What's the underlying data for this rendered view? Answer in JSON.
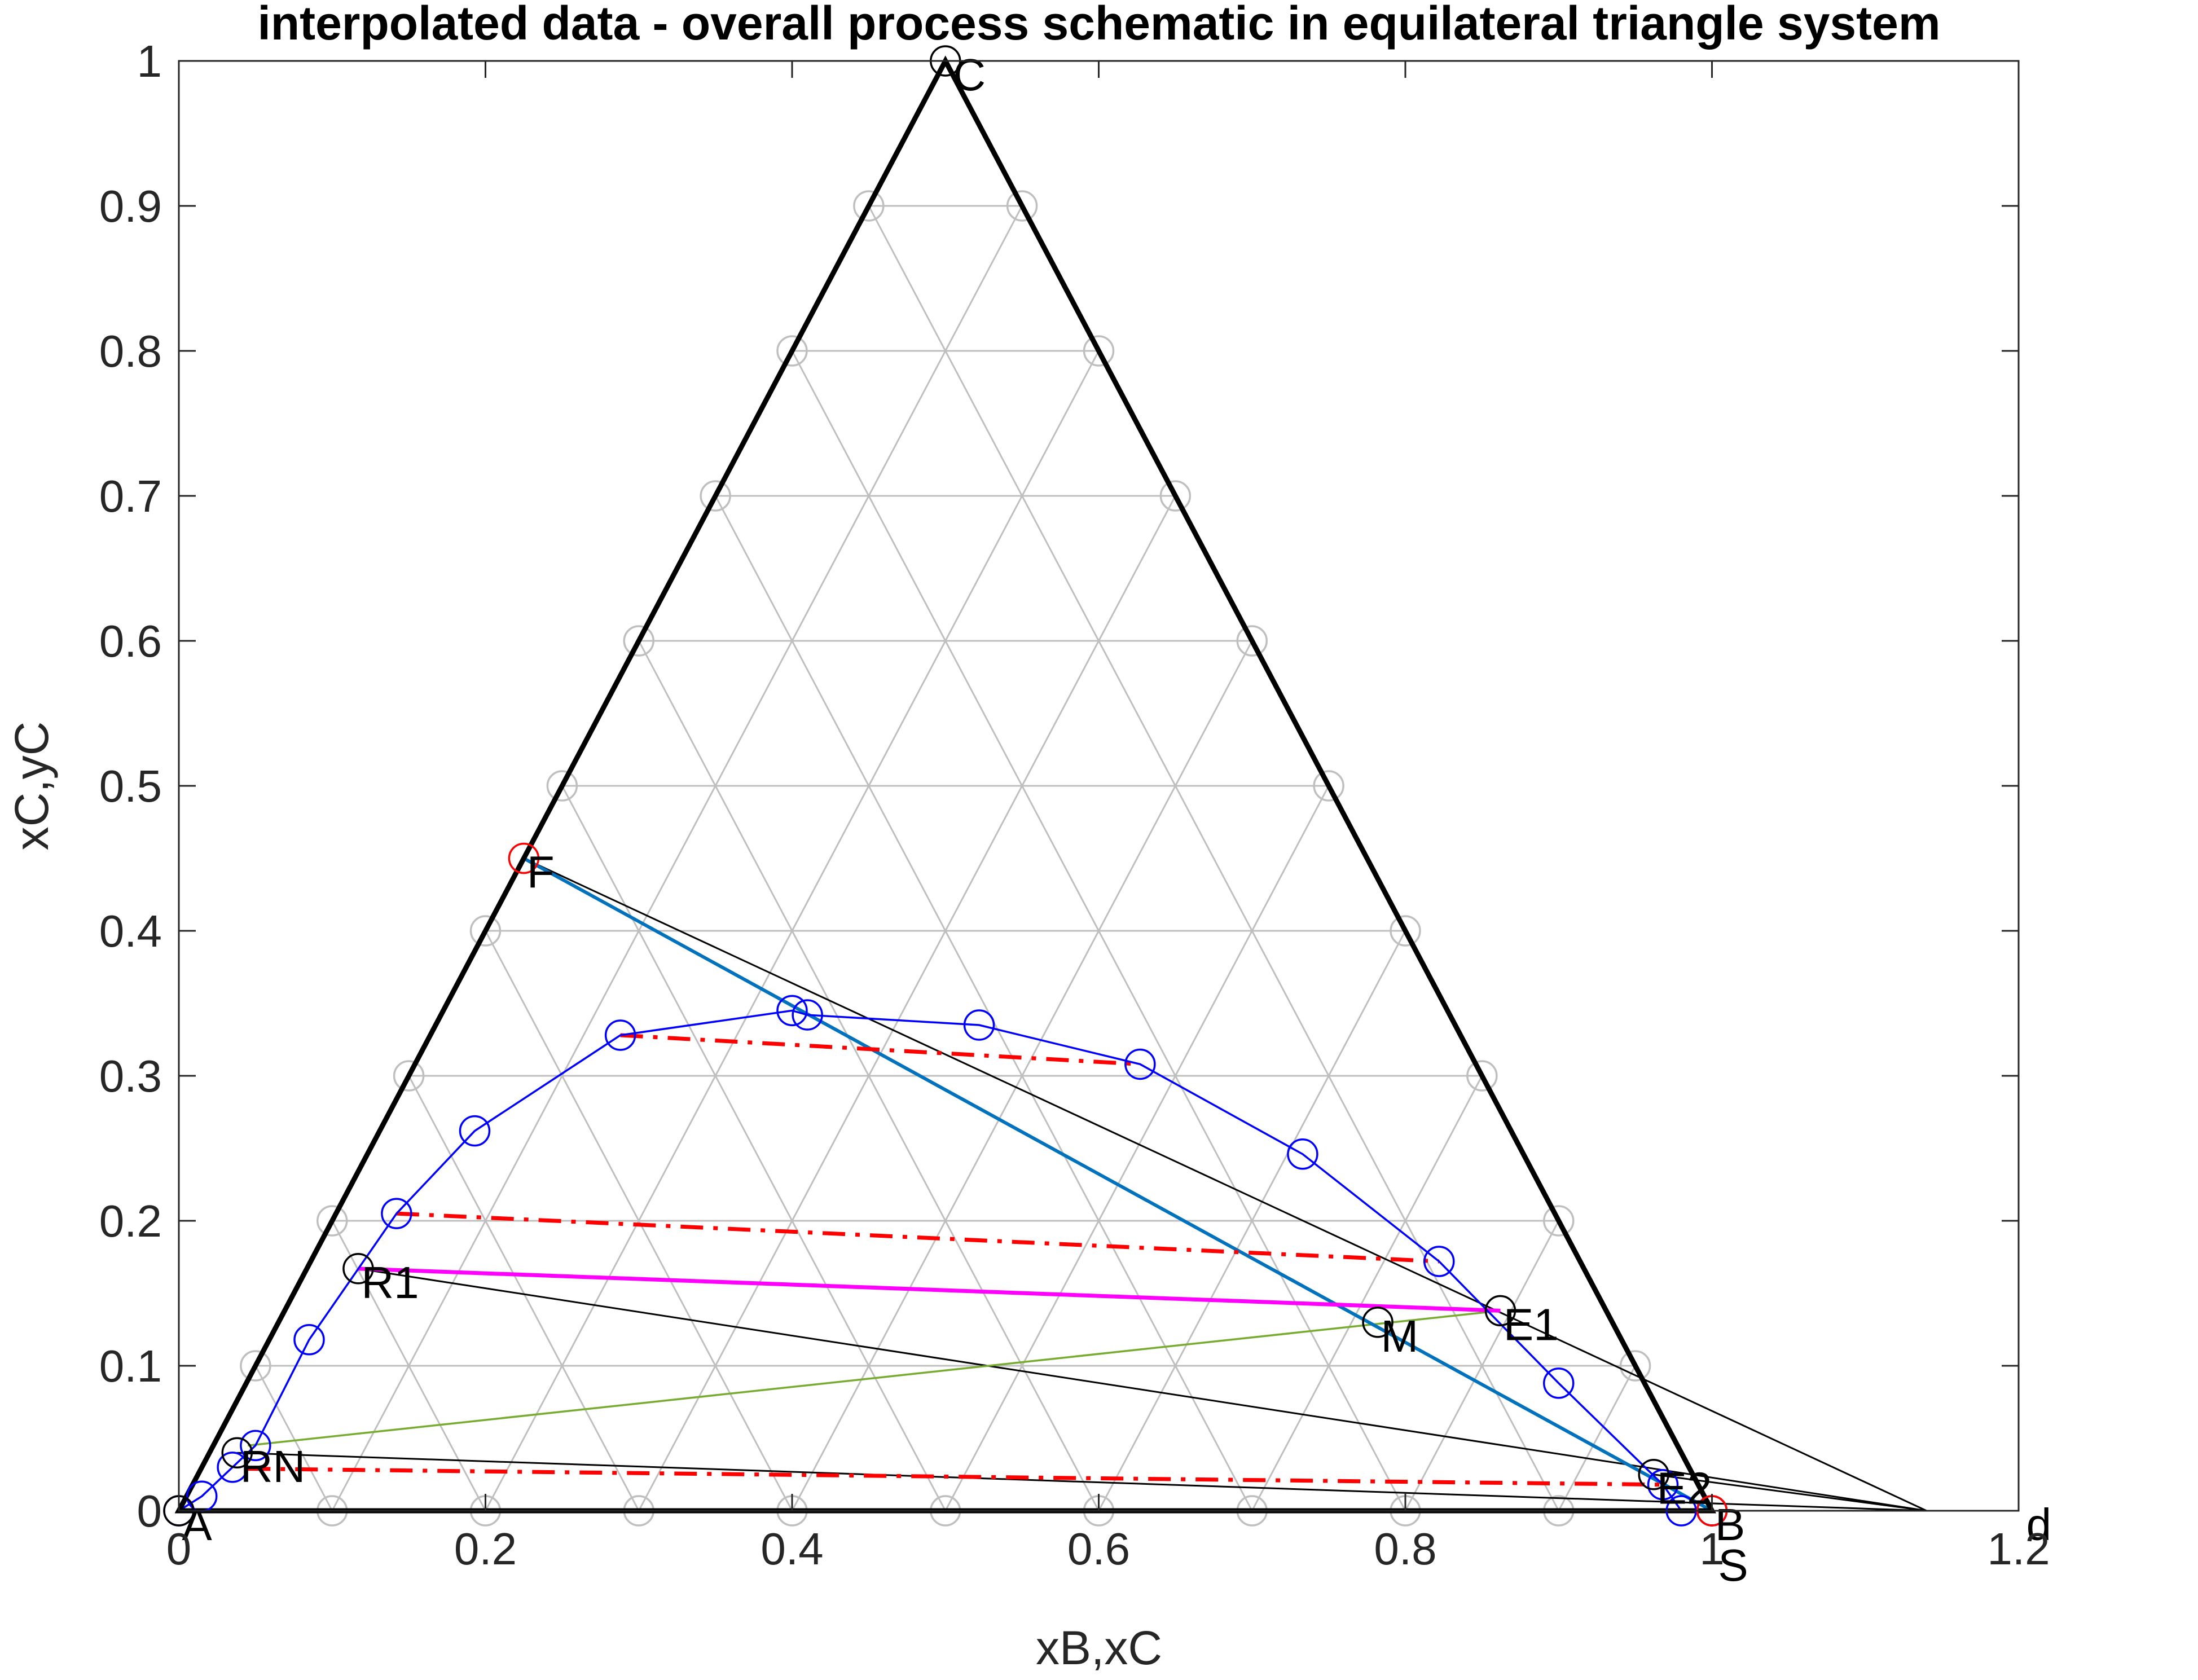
{
  "chart_data": {
    "type": "scatter",
    "title": "interpolated data - overall process schematic in equilateral triangle system",
    "xlabel": "xB,xC",
    "ylabel": "xC,yC",
    "xlim": [
      0,
      1.2
    ],
    "ylim": [
      0,
      1
    ],
    "x_ticks": [
      0,
      0.2,
      0.4,
      0.6,
      0.8,
      1,
      1.2
    ],
    "x_tick_labels": [
      "0",
      "0.2",
      "0.4",
      "0.6",
      "0.8",
      "1",
      "1.2"
    ],
    "y_ticks": [
      0,
      0.1,
      0.2,
      0.3,
      0.4,
      0.5,
      0.6,
      0.7,
      0.8,
      0.9,
      1
    ],
    "y_tick_labels": [
      "0",
      "0.1",
      "0.2",
      "0.3",
      "0.4",
      "0.5",
      "0.6",
      "0.7",
      "0.8",
      "0.9",
      "1"
    ],
    "colors": {
      "triangle": "#000000",
      "grid": "#bfbfbf",
      "binodal": "#0000ff",
      "tie_lines": "#ff0000",
      "operating_tie": "#ff00ff",
      "feed_solvent_line": "#0072bd",
      "mix_line": "#77ac30",
      "construction": "#000000",
      "feed_marker": "#ff0000"
    },
    "triangle": [
      [
        0,
        0
      ],
      [
        1,
        0
      ],
      [
        0.5,
        1
      ]
    ],
    "grid_points": [
      [
        0.1,
        0
      ],
      [
        0.2,
        0
      ],
      [
        0.3,
        0
      ],
      [
        0.4,
        0
      ],
      [
        0.5,
        0
      ],
      [
        0.6,
        0
      ],
      [
        0.7,
        0
      ],
      [
        0.8,
        0
      ],
      [
        0.9,
        0
      ],
      [
        0.05,
        0.1
      ],
      [
        0.95,
        0.1
      ],
      [
        0.1,
        0.2
      ],
      [
        0.9,
        0.2
      ],
      [
        0.15,
        0.3
      ],
      [
        0.85,
        0.3
      ],
      [
        0.2,
        0.4
      ],
      [
        0.8,
        0.4
      ],
      [
        0.25,
        0.5
      ],
      [
        0.75,
        0.5
      ],
      [
        0.3,
        0.6
      ],
      [
        0.7,
        0.6
      ],
      [
        0.35,
        0.7
      ],
      [
        0.65,
        0.7
      ],
      [
        0.4,
        0.8
      ],
      [
        0.6,
        0.8
      ],
      [
        0.45,
        0.9
      ],
      [
        0.55,
        0.9
      ]
    ],
    "binodal": [
      [
        0,
        0
      ],
      [
        0.015,
        0.01
      ],
      [
        0.035,
        0.03
      ],
      [
        0.05,
        0.045
      ],
      [
        0.085,
        0.118
      ],
      [
        0.142,
        0.205
      ],
      [
        0.193,
        0.262
      ],
      [
        0.288,
        0.328
      ],
      [
        0.4,
        0.345
      ],
      [
        0.41,
        0.342
      ],
      [
        0.522,
        0.335
      ],
      [
        0.627,
        0.308
      ],
      [
        0.733,
        0.246
      ],
      [
        0.822,
        0.172
      ],
      [
        0.9,
        0.088
      ],
      [
        0.968,
        0.018
      ],
      [
        0.98,
        0
      ],
      [
        1,
        0
      ]
    ],
    "tie_lines": [
      [
        [
          0.288,
          0.328
        ],
        [
          0.627,
          0.308
        ]
      ],
      [
        [
          0.142,
          0.205
        ],
        [
          0.822,
          0.172
        ]
      ],
      [
        [
          0.045,
          0.029
        ],
        [
          0.968,
          0.018
        ]
      ]
    ],
    "operating_tie": [
      [
        0.117,
        0.167
      ],
      [
        0.862,
        0.138
      ]
    ],
    "feed_solvent_line": [
      [
        0.225,
        0.45
      ],
      [
        1,
        0
      ]
    ],
    "mix_line": [
      [
        0.045,
        0.045
      ],
      [
        0.862,
        0.138
      ]
    ],
    "construction_lines": [
      [
        [
          0.225,
          0.45
        ],
        [
          1.14,
          0
        ]
      ],
      [
        [
          0.117,
          0.167
        ],
        [
          1.14,
          0
        ]
      ],
      [
        [
          0.038,
          0.04
        ],
        [
          1.14,
          0
        ]
      ],
      [
        [
          0.962,
          0.025
        ],
        [
          1.14,
          0
        ]
      ],
      [
        [
          0,
          0
        ],
        [
          1.14,
          0
        ]
      ]
    ],
    "points": [
      {
        "label": "C",
        "x": 0.5,
        "y": 1,
        "color": "#000000",
        "label_dx": 0.005,
        "label_dy": -0.012
      },
      {
        "label": "F",
        "x": 0.225,
        "y": 0.45,
        "color": "#ff0000",
        "label_dx": 0.002,
        "label_dy": -0.012
      },
      {
        "label": "R1",
        "x": 0.117,
        "y": 0.167,
        "color": "#000000",
        "label_dx": 0.002,
        "label_dy": -0.012
      },
      {
        "label": "M",
        "x": 0.782,
        "y": 0.13,
        "color": "#000000",
        "label_dx": 0.002,
        "label_dy": -0.012
      },
      {
        "label": "E1",
        "x": 0.862,
        "y": 0.138,
        "color": "#000000",
        "label_dx": 0.002,
        "label_dy": -0.012
      },
      {
        "label": "RN",
        "x": 0.038,
        "y": 0.04,
        "color": "#000000",
        "label_dx": 0.002,
        "label_dy": -0.012
      },
      {
        "label": "E2",
        "x": 0.962,
        "y": 0.025,
        "color": "#000000",
        "label_dx": 0.002,
        "label_dy": -0.012
      },
      {
        "label": "A",
        "x": 0,
        "y": 0,
        "color": "#000000",
        "label_dx": 0.002,
        "label_dy": -0.012
      },
      {
        "label": "B",
        "x": 1,
        "y": 0,
        "color": "#000000",
        "label_dx": 0.002,
        "label_dy": -0.012
      },
      {
        "label": "S",
        "x": 1,
        "y": 0,
        "color": "#ff0000",
        "label_dx": 0.004,
        "label_dy": -0.04
      },
      {
        "label": "d",
        "x": 1.14,
        "y": 0,
        "color": "#000000",
        "label_dx": 0.065,
        "label_dy": -0.012
      }
    ]
  }
}
